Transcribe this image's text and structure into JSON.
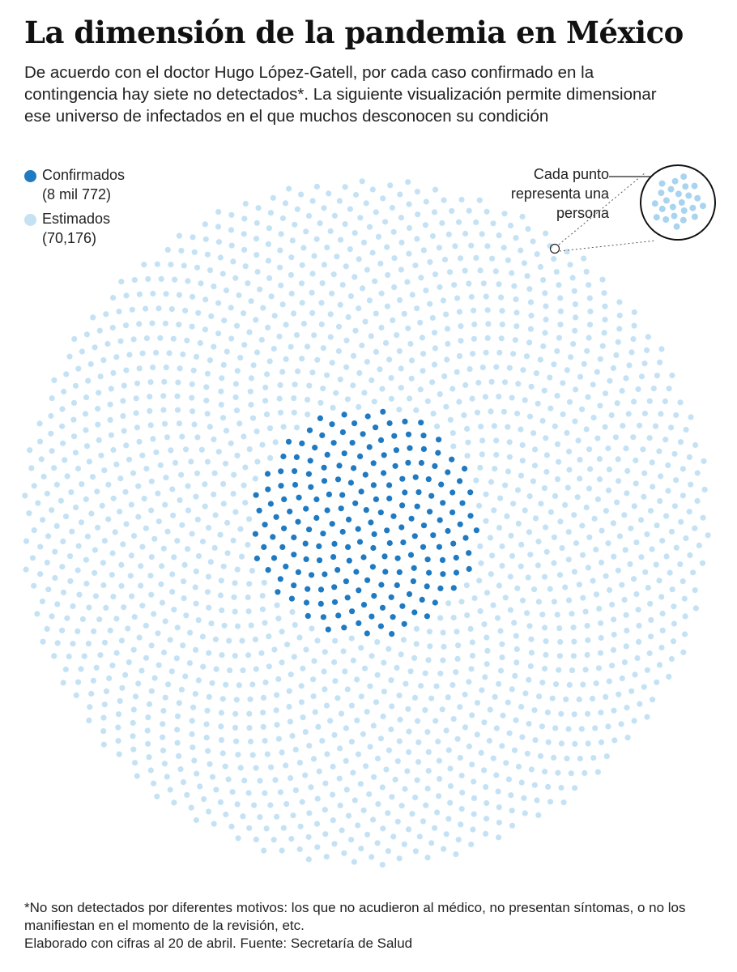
{
  "header": {
    "title": "La dimensión de la pandemia en México",
    "subtitle": "De acuerdo con el doctor Hugo López-Gatell, por cada caso confirmado en la contingencia hay siete no detectados*. La siguiente visualización permite dimensionar ese universo de infectados en el que muchos desconocen su condición"
  },
  "legend": {
    "confirmed_label": "Confirmados",
    "confirmed_value": "(8 mil 772)",
    "estimated_label": "Estimados",
    "estimated_value": "(70,176)"
  },
  "callout": {
    "text": "Cada punto\nrepresenta una\npersona"
  },
  "chart_data": {
    "type": "dot-spiral",
    "unit": "Cada punto representa una persona",
    "series": [
      {
        "name": "Confirmados",
        "value": 8772,
        "color": "#1f7ac2"
      },
      {
        "name": "Estimados",
        "value": 70176,
        "color": "#c5e2f4"
      }
    ],
    "ratio_estimated_to_confirmed": 7,
    "layout": "sunflower spiral, confirmed at center, estimated surrounding"
  },
  "footer": {
    "footnote": "*No son detectados por diferentes motivos: los que no acudieron al médico, no presentan síntomas, o no los manifiestan en el momento de la revisión, etc.",
    "source": "Elaborado con cifras al 20 de abril. Fuente: Secretaría de Salud"
  }
}
